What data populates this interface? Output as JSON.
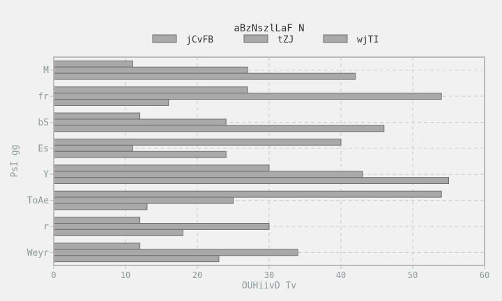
{
  "chart_data": {
    "type": "bar",
    "orientation": "horizontal",
    "title": "aBzNszlLaF  N",
    "xlabel": "OUHiivD Tv",
    "ylabel": "PsI gg",
    "categories": [
      "M",
      "fr",
      "bS",
      "Es",
      "Y",
      "ToAe",
      "r",
      "Weyr"
    ],
    "series": [
      {
        "name": "jCvFB",
        "values": [
          11,
          27,
          12,
          40,
          30,
          54,
          12,
          12
        ]
      },
      {
        "name": "tZJ",
        "values": [
          27,
          54,
          24,
          11,
          43,
          25,
          30,
          34
        ]
      },
      {
        "name": "wjTI",
        "values": [
          42,
          16,
          46,
          24,
          55,
          13,
          18,
          23
        ]
      }
    ],
    "xlim": [
      0,
      60
    ],
    "xticks": [
      0,
      10,
      20,
      30,
      40,
      50,
      60
    ],
    "grid": true,
    "legend": "top-center",
    "colors": {
      "bar_fill": "#a9a9a9",
      "bar_stroke": "#6e6e6e",
      "axis": "#bbbbbb",
      "grid": "#cccccc",
      "tick_text": "#8a9a9a",
      "title_text": "#333333",
      "background": "#f1f1f1"
    }
  }
}
